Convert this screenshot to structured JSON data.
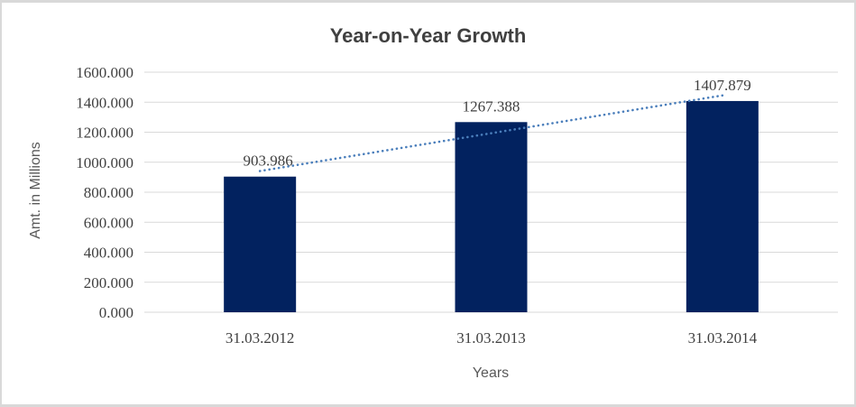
{
  "window": {
    "background_color": "#ffffff",
    "border_color": "#d9d9d9"
  },
  "chart_data": {
    "type": "bar",
    "title": "Year-on-Year Growth",
    "xlabel": "Years",
    "ylabel": "Amt. in Millions",
    "categories": [
      "31.03.2012",
      "31.03.2013",
      "31.03.2014"
    ],
    "values": [
      903.986,
      1267.388,
      1407.879
    ],
    "data_labels": [
      "903.986",
      "1267.388",
      "1407.879"
    ],
    "ylim": [
      0,
      1600
    ],
    "ytick_step": 200,
    "ytick_labels": [
      "0.000",
      "200.000",
      "400.000",
      "600.000",
      "800.000",
      "1000.000",
      "1200.000",
      "1400.000",
      "1600.000"
    ],
    "grid": true,
    "legend": "none",
    "trendline": {
      "type": "linear",
      "style": "dotted",
      "color": "#4a7ebb"
    },
    "colors": {
      "bar": "#02225f",
      "gridline": "#d9d9d9",
      "title_text": "#404040",
      "tick_text": "#404040",
      "axis_title_text": "#595959"
    }
  }
}
